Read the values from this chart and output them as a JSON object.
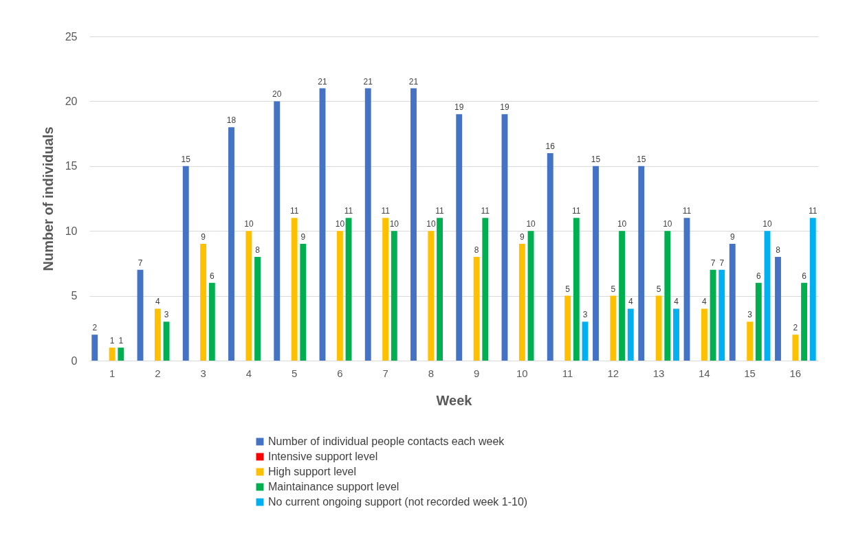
{
  "chart_data": {
    "type": "bar",
    "xlabel": "Week",
    "ylabel": "Number of individuals",
    "categories": [
      "1",
      "2",
      "3",
      "4",
      "5",
      "6",
      "7",
      "8",
      "9",
      "10",
      "11",
      "12",
      "13",
      "14",
      "15",
      "16"
    ],
    "series": [
      {
        "name": "Number of individual people contacts each week",
        "color": "#4472c4",
        "values": [
          2,
          7,
          15,
          18,
          20,
          21,
          21,
          21,
          19,
          19,
          16,
          15,
          15,
          11,
          9,
          8
        ]
      },
      {
        "name": "Intensive support level",
        "color": "#ff0000",
        "values": [
          null,
          null,
          null,
          null,
          null,
          null,
          null,
          null,
          null,
          null,
          null,
          null,
          null,
          null,
          null,
          null
        ]
      },
      {
        "name": "High support level",
        "color": "#ffc000",
        "values": [
          1,
          4,
          9,
          10,
          11,
          10,
          11,
          10,
          8,
          9,
          5,
          5,
          5,
          4,
          3,
          2
        ]
      },
      {
        "name": "Maintainance support level",
        "color": "#00b050",
        "values": [
          1,
          3,
          6,
          8,
          9,
          11,
          10,
          11,
          11,
          10,
          11,
          10,
          10,
          7,
          6,
          6
        ]
      },
      {
        "name": "No current ongoing support (not recorded week 1-10)",
        "color": "#00b0f0",
        "values": [
          null,
          null,
          null,
          null,
          null,
          null,
          null,
          null,
          null,
          null,
          3,
          4,
          4,
          7,
          10,
          11
        ]
      }
    ],
    "ylim": [
      0,
      25
    ],
    "yticks": [
      0,
      5,
      10,
      15,
      20,
      25
    ],
    "grid": "y",
    "legend": "bottom",
    "data_labels": true
  }
}
